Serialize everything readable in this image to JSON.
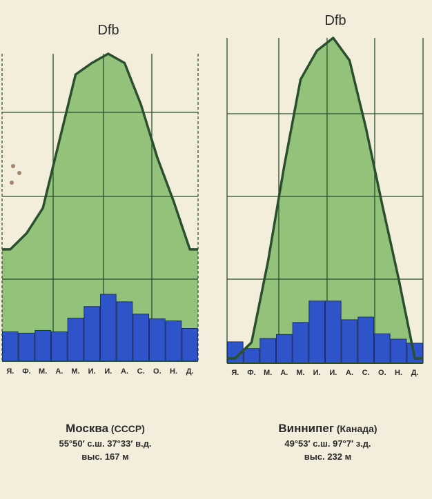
{
  "colors": {
    "background": "#f3eedc",
    "temperature_fill": "#93c27a",
    "temperature_line": "#2a4f2e",
    "precip_bar": "#2f54c9",
    "grid": "#2a4f2e",
    "text": "#2a2a2a"
  },
  "chart_data": [
    {
      "type": "bar",
      "title": "Dfb",
      "categories": [
        "Я.",
        "Ф.",
        "М.",
        "А.",
        "М.",
        "И.",
        "И.",
        "А.",
        "С.",
        "О.",
        "Н.",
        "Д."
      ],
      "series": [
        {
          "kind": "temperature-area",
          "values": [
            0.15,
            0.22,
            0.33,
            0.62,
            0.91,
            0.96,
            1.0,
            0.96,
            0.78,
            0.55,
            0.36,
            0.15
          ]
        },
        {
          "kind": "precipitation-bars",
          "values": [
            0.43,
            0.41,
            0.45,
            0.43,
            0.63,
            0.8,
            0.98,
            0.87,
            0.69,
            0.62,
            0.59,
            0.48
          ]
        }
      ],
      "grid": true
    },
    {
      "type": "bar",
      "title": "Dfb",
      "categories": [
        "Я.",
        "Ф.",
        "М.",
        "А.",
        "М.",
        "И.",
        "И.",
        "А.",
        "С.",
        "О.",
        "Н.",
        "Д."
      ],
      "series": [
        {
          "kind": "temperature-area",
          "values": [
            0.0,
            0.05,
            0.3,
            0.6,
            0.87,
            0.96,
            1.0,
            0.93,
            0.72,
            0.48,
            0.25,
            0.0
          ]
        },
        {
          "kind": "precipitation-bars",
          "values": [
            0.32,
            0.22,
            0.37,
            0.43,
            0.61,
            0.93,
            0.93,
            0.65,
            0.69,
            0.44,
            0.36,
            0.3
          ]
        }
      ],
      "grid": true
    }
  ],
  "captions": [
    {
      "name": "Москва",
      "country": " (СССР)",
      "coords": "55°50′ с.ш.   37°33′ в.д.",
      "elev": "выс. 167 м"
    },
    {
      "name": "Виннипег",
      "country": " (Канада)",
      "coords": "49°53′ с.ш.  97°7′ з.д.",
      "elev": "выс. 232 м"
    }
  ]
}
